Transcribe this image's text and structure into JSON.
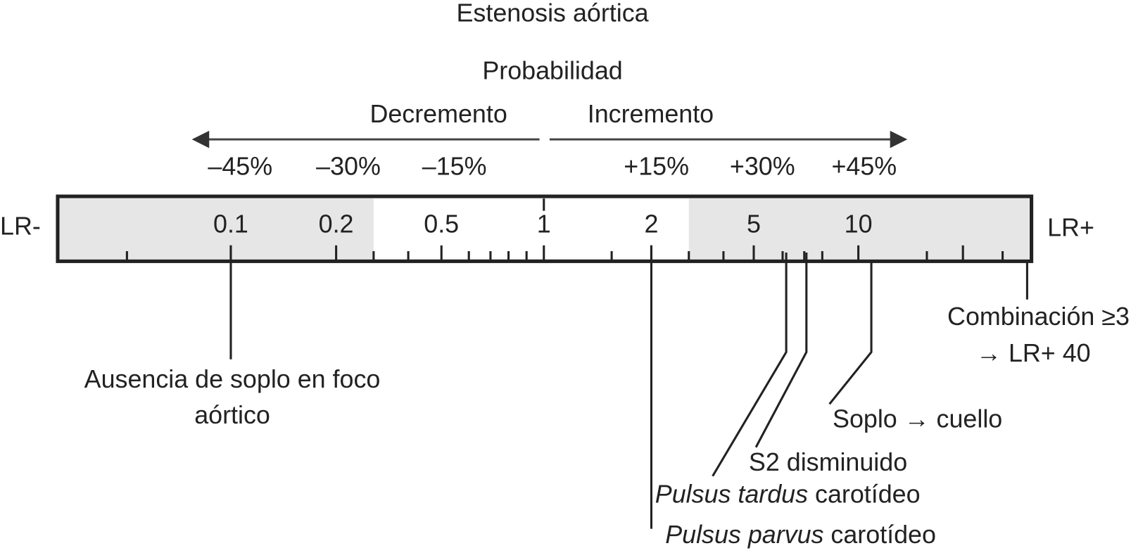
{
  "title": "Estenosis aórtica",
  "probability_label": "Probabilidad",
  "direction": {
    "decrease": "Decremento",
    "increase": "Incremento"
  },
  "percent_labels": [
    "–45%",
    "–30%",
    "–15%",
    "+15%",
    "+30%",
    "+45%"
  ],
  "scale": {
    "left_label": "LR-",
    "right_label": "LR+",
    "tick_labels": [
      "0.1",
      "0.2",
      "0.5",
      "1",
      "2",
      "5",
      "10"
    ]
  },
  "findings": [
    {
      "lines": [
        "Ausencia de soplo en foco",
        "aórtico"
      ]
    },
    {
      "italic": "Pulsus parvus",
      "rest": " carotídeo"
    },
    {
      "italic": "Pulsus tardus",
      "rest": " carotídeo"
    },
    {
      "text": "S2 disminuido"
    },
    {
      "text": "Soplo → cuello"
    },
    {
      "lines": [
        "Combinación ≥3",
        "→ LR+ 40"
      ]
    }
  ]
}
